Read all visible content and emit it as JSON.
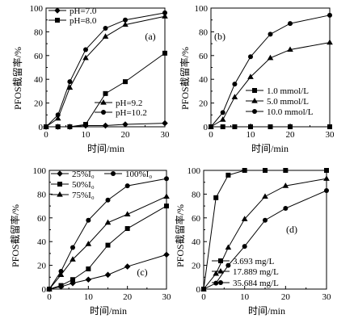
{
  "figure": {
    "background": "#ffffff",
    "ink": "#000000"
  },
  "chart_data": [
    {
      "panel_label": "(a)",
      "label_loc": "top-right",
      "type": "line",
      "xlabel": "时间/min",
      "ylabel": "PFOS截留率/%",
      "xlim": [
        0,
        30
      ],
      "ylim": [
        0,
        100
      ],
      "xticks": [
        0,
        10,
        20,
        30
      ],
      "yticks": [
        0,
        20,
        40,
        60,
        80,
        100
      ],
      "grid": false,
      "x": [
        0,
        3,
        6,
        10,
        15,
        20,
        30
      ],
      "series": [
        {
          "name": "pH=7.0",
          "marker": "diamond",
          "legend_loc": "top-left",
          "values": [
            0,
            0,
            0,
            1,
            1,
            2,
            3
          ]
        },
        {
          "name": "pH=8.0",
          "marker": "square",
          "legend_loc": "top-left",
          "values": [
            0,
            0,
            0,
            2,
            28,
            38,
            62
          ]
        },
        {
          "name": "pH=9.2",
          "marker": "triangle",
          "legend_loc": "bottom-right",
          "values": [
            0,
            7,
            33,
            58,
            76,
            86,
            93
          ]
        },
        {
          "name": "pH=10.2",
          "marker": "circle",
          "legend_loc": "bottom-right",
          "values": [
            0,
            10,
            38,
            65,
            83,
            90,
            96
          ]
        }
      ]
    },
    {
      "panel_label": "(b)",
      "label_loc": "top-left",
      "type": "line",
      "xlabel": "时间/min",
      "ylabel": "PFOS截留率/%",
      "xlim": [
        0,
        30
      ],
      "ylim": [
        0,
        100
      ],
      "xticks": [
        0,
        10,
        20,
        30
      ],
      "yticks": [
        0,
        20,
        40,
        60,
        80,
        100
      ],
      "grid": false,
      "legend_loc": "bottom-right",
      "x": [
        0,
        3,
        6,
        10,
        15,
        20,
        30
      ],
      "series": [
        {
          "name": "1.0 mmol/L",
          "marker": "square",
          "values": [
            0,
            0,
            0,
            0,
            0,
            0,
            0
          ]
        },
        {
          "name": "5.0 mmol/L",
          "marker": "triangle",
          "values": [
            0,
            6,
            25,
            42,
            58,
            65,
            71
          ]
        },
        {
          "name": "10.0 mmol/L",
          "marker": "circle",
          "values": [
            0,
            12,
            36,
            59,
            78,
            87,
            94
          ]
        }
      ]
    },
    {
      "panel_label": "(c)",
      "label_loc": "bottom-right",
      "type": "line",
      "xlabel": "时间/min",
      "ylabel": "PFOS截留率/%",
      "xlim": [
        0,
        30
      ],
      "ylim": [
        0,
        100
      ],
      "xticks": [
        0,
        10,
        20,
        30
      ],
      "yticks": [
        0,
        20,
        40,
        60,
        80,
        100
      ],
      "grid": false,
      "legend_loc": "top-left",
      "x": [
        0,
        3,
        6,
        10,
        15,
        20,
        30
      ],
      "series": [
        {
          "name": "25%I₀",
          "marker": "diamond",
          "values": [
            0,
            2,
            5,
            8,
            12,
            19,
            29
          ]
        },
        {
          "name": "50%I₀",
          "marker": "square",
          "values": [
            0,
            3,
            8,
            17,
            37,
            51,
            70
          ]
        },
        {
          "name": "75%I₀",
          "marker": "triangle",
          "values": [
            0,
            12,
            25,
            38,
            56,
            63,
            78
          ]
        },
        {
          "name": "100%I₀",
          "marker": "circle",
          "values": [
            0,
            15,
            35,
            58,
            75,
            87,
            93
          ]
        }
      ]
    },
    {
      "panel_label": "(d)",
      "label_loc": "right",
      "type": "line",
      "xlabel": "时间/min",
      "ylabel": "PFOS截留率/%",
      "xlim": [
        0,
        30
      ],
      "ylim": [
        0,
        100
      ],
      "xticks": [
        0,
        10,
        20,
        30
      ],
      "yticks": [
        0,
        20,
        40,
        60,
        80,
        100
      ],
      "grid": false,
      "legend_loc": "bottom-right",
      "x": [
        0,
        3,
        6,
        10,
        15,
        20,
        30
      ],
      "series": [
        {
          "name": "3.693 mg/L",
          "marker": "square",
          "values": [
            0,
            77,
            96,
            100,
            100,
            100,
            100
          ]
        },
        {
          "name": "17.889 mg/L",
          "marker": "triangle",
          "values": [
            0,
            13,
            35,
            59,
            78,
            87,
            93
          ]
        },
        {
          "name": "35.684 mg/L",
          "marker": "circle",
          "values": [
            0,
            5,
            20,
            36,
            58,
            68,
            83
          ]
        }
      ]
    }
  ]
}
